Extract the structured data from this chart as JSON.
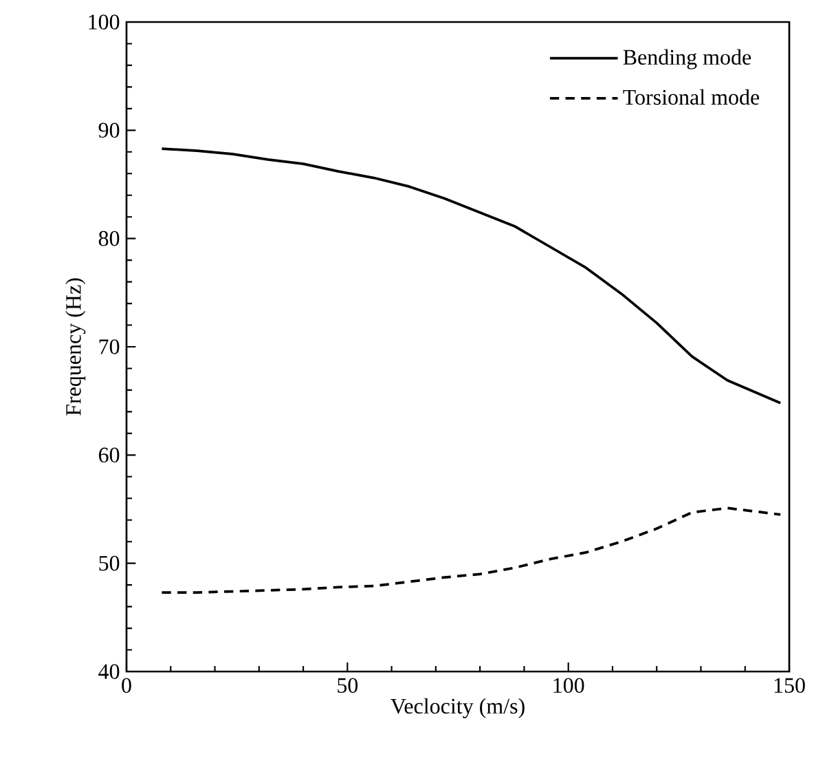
{
  "chart_data": {
    "type": "line",
    "xlabel": "Veclocity (m/s)",
    "ylabel": "Frequency (Hz)",
    "xlim": [
      0,
      150
    ],
    "ylim": [
      40,
      100
    ],
    "xticks": [
      0,
      50,
      100,
      150
    ],
    "yticks": [
      40,
      50,
      60,
      70,
      80,
      90,
      100
    ],
    "grid": false,
    "legend": "top right",
    "marker": "none",
    "x": [
      8,
      16,
      24,
      32,
      40,
      48,
      56,
      64,
      72,
      80,
      88,
      96,
      104,
      112,
      120,
      128,
      136,
      148
    ],
    "series": [
      {
        "name": "Bending mode",
        "color": "#000000",
        "line_style": "solid",
        "values": [
          88.3,
          88.1,
          87.8,
          87.3,
          86.9,
          86.2,
          85.6,
          84.8,
          83.7,
          82.4,
          81.1,
          79.2,
          77.3,
          74.9,
          72.2,
          69.1,
          66.9,
          64.8
        ]
      },
      {
        "name": "Torsional mode",
        "color": "#000000",
        "line_style": "dashed",
        "values": [
          47.3,
          47.3,
          47.4,
          47.5,
          47.6,
          47.8,
          47.9,
          48.3,
          48.7,
          49.0,
          49.6,
          50.4,
          51.0,
          52.0,
          53.2,
          54.7,
          55.1,
          54.5
        ]
      }
    ]
  }
}
